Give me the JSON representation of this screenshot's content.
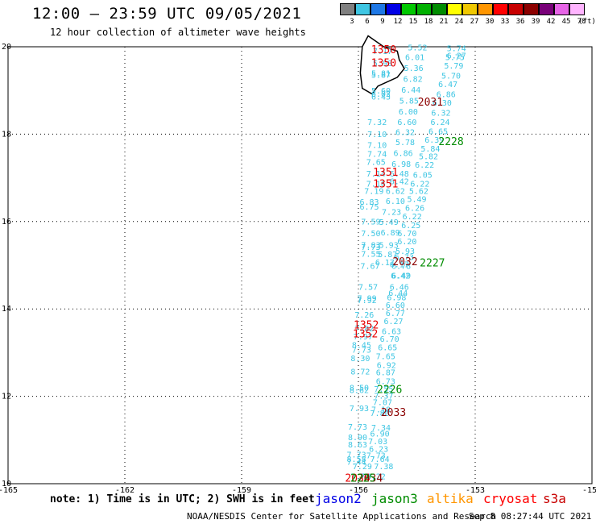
{
  "header": {
    "title": "12:00 – 23:59 UTC 09/05/2021",
    "subtitle": "12 hour collection of altimeter wave heights"
  },
  "legend": {
    "unit": "(ft)",
    "items": [
      {
        "label": "3",
        "color": "#808080"
      },
      {
        "label": "6",
        "color": "#3fc6e3"
      },
      {
        "label": "9",
        "color": "#1e78e6"
      },
      {
        "label": "12",
        "color": "#0000e6"
      },
      {
        "label": "15",
        "color": "#00c800"
      },
      {
        "label": "18",
        "color": "#00b000"
      },
      {
        "label": "21",
        "color": "#008c00"
      },
      {
        "label": "24",
        "color": "#ffff00"
      },
      {
        "label": "27",
        "color": "#f0c800"
      },
      {
        "label": "30",
        "color": "#ff9600"
      },
      {
        "label": "33",
        "color": "#ff0000"
      },
      {
        "label": "36",
        "color": "#c80000"
      },
      {
        "label": "39",
        "color": "#8c0000"
      },
      {
        "label": "42",
        "color": "#780078"
      },
      {
        "label": "45",
        "color": "#e664e6"
      },
      {
        "label": "70",
        "color": "#ffb4ff"
      }
    ]
  },
  "axes": {
    "xticks": [
      "-165",
      "-162",
      "-159",
      "-156",
      "-153",
      "-150"
    ],
    "yticks": [
      "20",
      "18",
      "16",
      "14",
      "12",
      "10"
    ],
    "xlim": [
      -165,
      -150
    ],
    "ylim": [
      10,
      20
    ]
  },
  "colors": {
    "swh": "#3fc6e3",
    "jason2": "#0000e6",
    "jason3": "#008c00",
    "altika": "#ff9600",
    "cryosat": "#ff0000",
    "time_red": "#e60000",
    "time_darkred": "#8c0000",
    "time_green": "#008c00"
  },
  "observations": [
    {
      "lon": -155.38,
      "lat": 19.83,
      "v": "7.17"
    },
    {
      "lon": -155.38,
      "lat": 19.56,
      "v": "5.98"
    },
    {
      "lon": -155.42,
      "lat": 19.33,
      "v": "5.81"
    },
    {
      "lon": -155.42,
      "lat": 19.29,
      "v": "5.87"
    },
    {
      "lon": -155.42,
      "lat": 18.93,
      "v": "5.60"
    },
    {
      "lon": -155.42,
      "lat": 18.86,
      "v": "6.02"
    },
    {
      "lon": -155.42,
      "lat": 18.79,
      "v": "6.43"
    },
    {
      "lon": -155.52,
      "lat": 18.21,
      "v": "7.32"
    },
    {
      "lon": -155.52,
      "lat": 17.93,
      "v": "7.10"
    },
    {
      "lon": -155.52,
      "lat": 17.68,
      "v": "7.10"
    },
    {
      "lon": -155.52,
      "lat": 17.48,
      "v": "7.74"
    },
    {
      "lon": -155.55,
      "lat": 17.3,
      "v": "7.65"
    },
    {
      "lon": -155.55,
      "lat": 17.03,
      "v": "7.14"
    },
    {
      "lon": -155.55,
      "lat": 16.8,
      "v": "7.16"
    },
    {
      "lon": -155.6,
      "lat": 16.63,
      "v": "7.19"
    },
    {
      "lon": -155.72,
      "lat": 16.38,
      "v": "6.83"
    },
    {
      "lon": -155.72,
      "lat": 16.27,
      "v": "6.75"
    },
    {
      "lon": -155.68,
      "lat": 15.93,
      "v": "7.59"
    },
    {
      "lon": -155.68,
      "lat": 15.66,
      "v": "7.50"
    },
    {
      "lon": -155.68,
      "lat": 15.4,
      "v": "7.83"
    },
    {
      "lon": -155.68,
      "lat": 15.35,
      "v": "7.73"
    },
    {
      "lon": -155.68,
      "lat": 15.19,
      "v": "7.55"
    },
    {
      "lon": -155.7,
      "lat": 14.92,
      "v": "7.67"
    },
    {
      "lon": -155.75,
      "lat": 14.44,
      "v": "7.57"
    },
    {
      "lon": -155.78,
      "lat": 14.18,
      "v": "7.99"
    },
    {
      "lon": -155.78,
      "lat": 14.13,
      "v": "7.92"
    },
    {
      "lon": -155.85,
      "lat": 13.8,
      "v": "7.26"
    },
    {
      "lon": -155.85,
      "lat": 13.49,
      "v": "7.82"
    },
    {
      "lon": -155.88,
      "lat": 13.3,
      "v": "7.97"
    },
    {
      "lon": -155.92,
      "lat": 13.11,
      "v": "8.45"
    },
    {
      "lon": -155.92,
      "lat": 13.0,
      "v": "7.73"
    },
    {
      "lon": -155.95,
      "lat": 12.8,
      "v": "8.30"
    },
    {
      "lon": -155.95,
      "lat": 12.5,
      "v": "8.72"
    },
    {
      "lon": -155.98,
      "lat": 12.13,
      "v": "8.50"
    },
    {
      "lon": -155.98,
      "lat": 12.08,
      "v": "8.62"
    },
    {
      "lon": -155.98,
      "lat": 11.66,
      "v": "7.93"
    },
    {
      "lon": -156.02,
      "lat": 11.24,
      "v": "7.73"
    },
    {
      "lon": -156.02,
      "lat": 11.0,
      "v": "8.90"
    },
    {
      "lon": -156.02,
      "lat": 10.83,
      "v": "8.63"
    },
    {
      "lon": -156.05,
      "lat": 10.6,
      "v": "7.73"
    },
    {
      "lon": -156.05,
      "lat": 10.5,
      "v": "8.58"
    },
    {
      "lon": -156.05,
      "lat": 10.43,
      "v": "7.44"
    },
    {
      "lon": -155.9,
      "lat": 10.33,
      "v": "7.29"
    },
    {
      "lon": -155.95,
      "lat": 10.1,
      "v": "7.72"
    },
    {
      "lon": -155.35,
      "lat": 10.33,
      "v": "7.38"
    },
    {
      "lon": -155.55,
      "lat": 10.1,
      "v": "8.22"
    },
    {
      "lon": -155.45,
      "lat": 10.5,
      "v": "7.64"
    },
    {
      "lon": -155.55,
      "lat": 10.58,
      "v": "7.73"
    },
    {
      "lon": -155.48,
      "lat": 10.73,
      "v": "6.23"
    },
    {
      "lon": -155.5,
      "lat": 10.9,
      "v": "7.03"
    },
    {
      "lon": -155.45,
      "lat": 11.08,
      "v": "6.90"
    },
    {
      "lon": -155.42,
      "lat": 11.22,
      "v": "7.34"
    },
    {
      "lon": -155.45,
      "lat": 11.55,
      "v": "7.80"
    },
    {
      "lon": -155.42,
      "lat": 11.63,
      "v": "7.18"
    },
    {
      "lon": -155.38,
      "lat": 11.8,
      "v": "7.07"
    },
    {
      "lon": -155.35,
      "lat": 11.95,
      "v": "7.37"
    },
    {
      "lon": -155.35,
      "lat": 12.1,
      "v": "7.55"
    },
    {
      "lon": -155.3,
      "lat": 12.28,
      "v": "6.73"
    },
    {
      "lon": -155.3,
      "lat": 12.48,
      "v": "6.87"
    },
    {
      "lon": -155.28,
      "lat": 12.65,
      "v": "6.92"
    },
    {
      "lon": -155.3,
      "lat": 12.85,
      "v": "7.65"
    },
    {
      "lon": -155.25,
      "lat": 13.05,
      "v": "6.65"
    },
    {
      "lon": -155.2,
      "lat": 13.25,
      "v": "6.70"
    },
    {
      "lon": -155.15,
      "lat": 13.42,
      "v": "6.63"
    },
    {
      "lon": -155.1,
      "lat": 13.65,
      "v": "6.27"
    },
    {
      "lon": -155.05,
      "lat": 13.84,
      "v": "6.77"
    },
    {
      "lon": -155.05,
      "lat": 14.02,
      "v": "6.60"
    },
    {
      "lon": -155.02,
      "lat": 14.2,
      "v": "6.98"
    },
    {
      "lon": -154.98,
      "lat": 14.3,
      "v": "6.44"
    },
    {
      "lon": -154.95,
      "lat": 14.44,
      "v": "6.46"
    },
    {
      "lon": -154.9,
      "lat": 14.7,
      "v": "6.49"
    },
    {
      "lon": -154.92,
      "lat": 14.7,
      "v": "6.42"
    },
    {
      "lon": -154.9,
      "lat": 14.92,
      "v": "6.78"
    },
    {
      "lon": -154.95,
      "lat": 14.95,
      "v": "6.17"
    },
    {
      "lon": -154.82,
      "lat": 15.12,
      "v": "6.73"
    },
    {
      "lon": -154.8,
      "lat": 15.26,
      "v": "5.93"
    },
    {
      "lon": -154.75,
      "lat": 15.48,
      "v": "6.20"
    },
    {
      "lon": -154.75,
      "lat": 15.66,
      "v": "6.70"
    },
    {
      "lon": -154.65,
      "lat": 15.85,
      "v": "6.25"
    },
    {
      "lon": -154.62,
      "lat": 16.05,
      "v": "6.22"
    },
    {
      "lon": -154.55,
      "lat": 16.25,
      "v": "6.26"
    },
    {
      "lon": -154.5,
      "lat": 16.45,
      "v": "5.49"
    },
    {
      "lon": -154.45,
      "lat": 16.63,
      "v": "5.62"
    },
    {
      "lon": -154.42,
      "lat": 16.8,
      "v": "6.22"
    },
    {
      "lon": -154.35,
      "lat": 17.0,
      "v": "6.05"
    },
    {
      "lon": -154.3,
      "lat": 17.23,
      "v": "6.22"
    },
    {
      "lon": -154.2,
      "lat": 17.43,
      "v": "5.82"
    },
    {
      "lon": -154.15,
      "lat": 17.6,
      "v": "5.84"
    },
    {
      "lon": -154.05,
      "lat": 17.8,
      "v": "6.39"
    },
    {
      "lon": -153.95,
      "lat": 18.0,
      "v": "6.65"
    },
    {
      "lon": -153.9,
      "lat": 18.21,
      "v": "6.24"
    },
    {
      "lon": -153.88,
      "lat": 18.42,
      "v": "6.32"
    },
    {
      "lon": -153.85,
      "lat": 18.65,
      "v": "6.30"
    },
    {
      "lon": -153.75,
      "lat": 18.85,
      "v": "6.86"
    },
    {
      "lon": -153.7,
      "lat": 19.08,
      "v": "6.47"
    },
    {
      "lon": -153.62,
      "lat": 19.27,
      "v": "5.70"
    },
    {
      "lon": -153.55,
      "lat": 19.5,
      "v": "5.79"
    },
    {
      "lon": -153.52,
      "lat": 19.7,
      "v": "5.75"
    },
    {
      "lon": -153.48,
      "lat": 19.9,
      "v": "5.74"
    },
    {
      "lon": -153.48,
      "lat": 19.73,
      "v": "6.27"
    },
    {
      "lon": -155.15,
      "lat": 16.15,
      "v": "7.23"
    },
    {
      "lon": -155.05,
      "lat": 16.4,
      "v": "6.10"
    },
    {
      "lon": -155.05,
      "lat": 16.63,
      "v": "6.62"
    },
    {
      "lon": -154.95,
      "lat": 16.85,
      "v": "6.42"
    },
    {
      "lon": -154.95,
      "lat": 17.03,
      "v": "6.48"
    },
    {
      "lon": -154.9,
      "lat": 17.25,
      "v": "6.98"
    },
    {
      "lon": -154.85,
      "lat": 17.5,
      "v": "6.86"
    },
    {
      "lon": -154.8,
      "lat": 17.75,
      "v": "5.78"
    },
    {
      "lon": -154.8,
      "lat": 17.98,
      "v": "6.32"
    },
    {
      "lon": -154.75,
      "lat": 18.21,
      "v": "6.60"
    },
    {
      "lon": -154.72,
      "lat": 18.45,
      "v": "6.00"
    },
    {
      "lon": -154.7,
      "lat": 18.7,
      "v": "5.85"
    },
    {
      "lon": -154.65,
      "lat": 18.95,
      "v": "6.44"
    },
    {
      "lon": -154.6,
      "lat": 19.2,
      "v": "6.82"
    },
    {
      "lon": -154.58,
      "lat": 19.45,
      "v": "5.36"
    },
    {
      "lon": -154.55,
      "lat": 19.7,
      "v": "6.01"
    },
    {
      "lon": -154.48,
      "lat": 19.92,
      "v": "5.52"
    },
    {
      "lon": -155.22,
      "lat": 15.92,
      "v": "5.49"
    },
    {
      "lon": -155.18,
      "lat": 15.68,
      "v": "6.89"
    },
    {
      "lon": -155.22,
      "lat": 15.4,
      "v": "5.93"
    },
    {
      "lon": -155.25,
      "lat": 15.18,
      "v": "5.87"
    },
    {
      "lon": -155.32,
      "lat": 15.0,
      "v": "6.17"
    }
  ],
  "labels_red": [
    {
      "lon": -155.35,
      "lat": 19.85,
      "t": "1350"
    },
    {
      "lon": -155.35,
      "lat": 19.55,
      "t": "1350"
    },
    {
      "lon": -155.3,
      "lat": 17.05,
      "t": "1351"
    },
    {
      "lon": -155.3,
      "lat": 16.78,
      "t": "1351"
    },
    {
      "lon": -155.8,
      "lat": 13.55,
      "t": "1352"
    },
    {
      "lon": -155.82,
      "lat": 13.35,
      "t": "1352"
    },
    {
      "lon": -156.02,
      "lat": 10.05,
      "t": "2034"
    }
  ],
  "labels_darkred": [
    {
      "lon": -154.15,
      "lat": 18.65,
      "t": "2031"
    },
    {
      "lon": -154.8,
      "lat": 15.0,
      "t": "2032"
    },
    {
      "lon": -155.1,
      "lat": 11.55,
      "t": "2033"
    },
    {
      "lon": -155.7,
      "lat": 10.05,
      "t": "2034"
    }
  ],
  "labels_green": [
    {
      "lon": -153.62,
      "lat": 17.75,
      "t": "2228"
    },
    {
      "lon": -154.1,
      "lat": 14.97,
      "t": "2227"
    },
    {
      "lon": -155.2,
      "lat": 12.08,
      "t": "2226"
    },
    {
      "lon": -155.88,
      "lat": 10.05,
      "t": "2225"
    }
  ],
  "hawaii_outline": [
    [
      -155.9,
      20.0
    ],
    [
      -155.75,
      20.25
    ],
    [
      -155.35,
      20.0
    ],
    [
      -155.0,
      19.9
    ],
    [
      -154.95,
      19.7
    ],
    [
      -154.82,
      19.5
    ],
    [
      -155.0,
      19.3
    ],
    [
      -155.5,
      19.1
    ],
    [
      -155.65,
      18.92
    ],
    [
      -155.9,
      19.05
    ],
    [
      -155.95,
      19.4
    ],
    [
      -155.9,
      20.0
    ]
  ],
  "footer": {
    "note": "note: 1) Time is in UTC; 2) SWH is in feet",
    "mission_jason2": "jason2",
    "mission_jason3": "jason3",
    "mission_altika": "altika",
    "mission_cryosat": "cryosat",
    "mission_s3a": "s3a",
    "credit": "NOAA/NESDIS Center for Satellite Applications and Research",
    "timestamp": "Sep  8 08:27:44 UTC 2021"
  }
}
